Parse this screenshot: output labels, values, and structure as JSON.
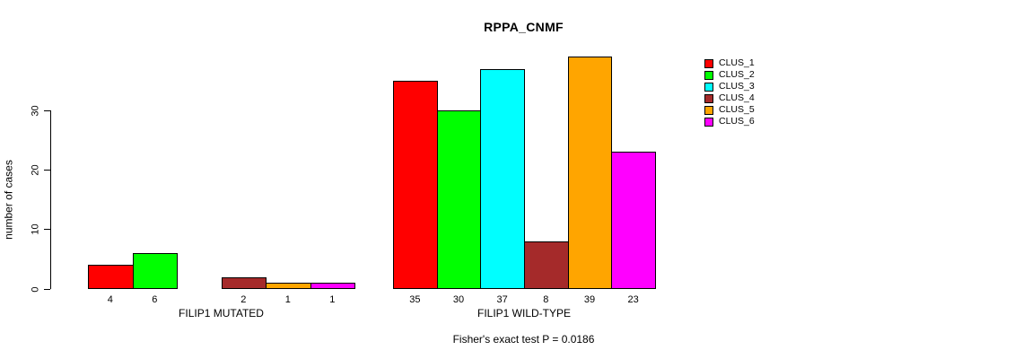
{
  "chart_data": {
    "type": "bar",
    "title": "RPPA_CNMF",
    "ylabel": "number of cases",
    "xlabel": "",
    "ylim": [
      0,
      30
    ],
    "yticks": [
      0,
      10,
      20,
      30
    ],
    "grid": false,
    "legend_position": "right",
    "series": [
      {
        "name": "CLUS_1",
        "color": "#FF0000"
      },
      {
        "name": "CLUS_2",
        "color": "#00FF00"
      },
      {
        "name": "CLUS_3",
        "color": "#00FFFF"
      },
      {
        "name": "CLUS_4",
        "color": "#A52A2A"
      },
      {
        "name": "CLUS_5",
        "color": "#FFA500"
      },
      {
        "name": "CLUS_6",
        "color": "#FF00FF"
      }
    ],
    "groups": [
      {
        "label": "FILIP1 MUTATED",
        "values": [
          4,
          6,
          0,
          2,
          1,
          1
        ]
      },
      {
        "label": "FILIP1 WILD-TYPE",
        "values": [
          35,
          30,
          37,
          8,
          39,
          23
        ]
      }
    ],
    "annotation": "Fisher's exact test P = 0.0186",
    "bar_value_labels_shown_for_zero": false
  }
}
